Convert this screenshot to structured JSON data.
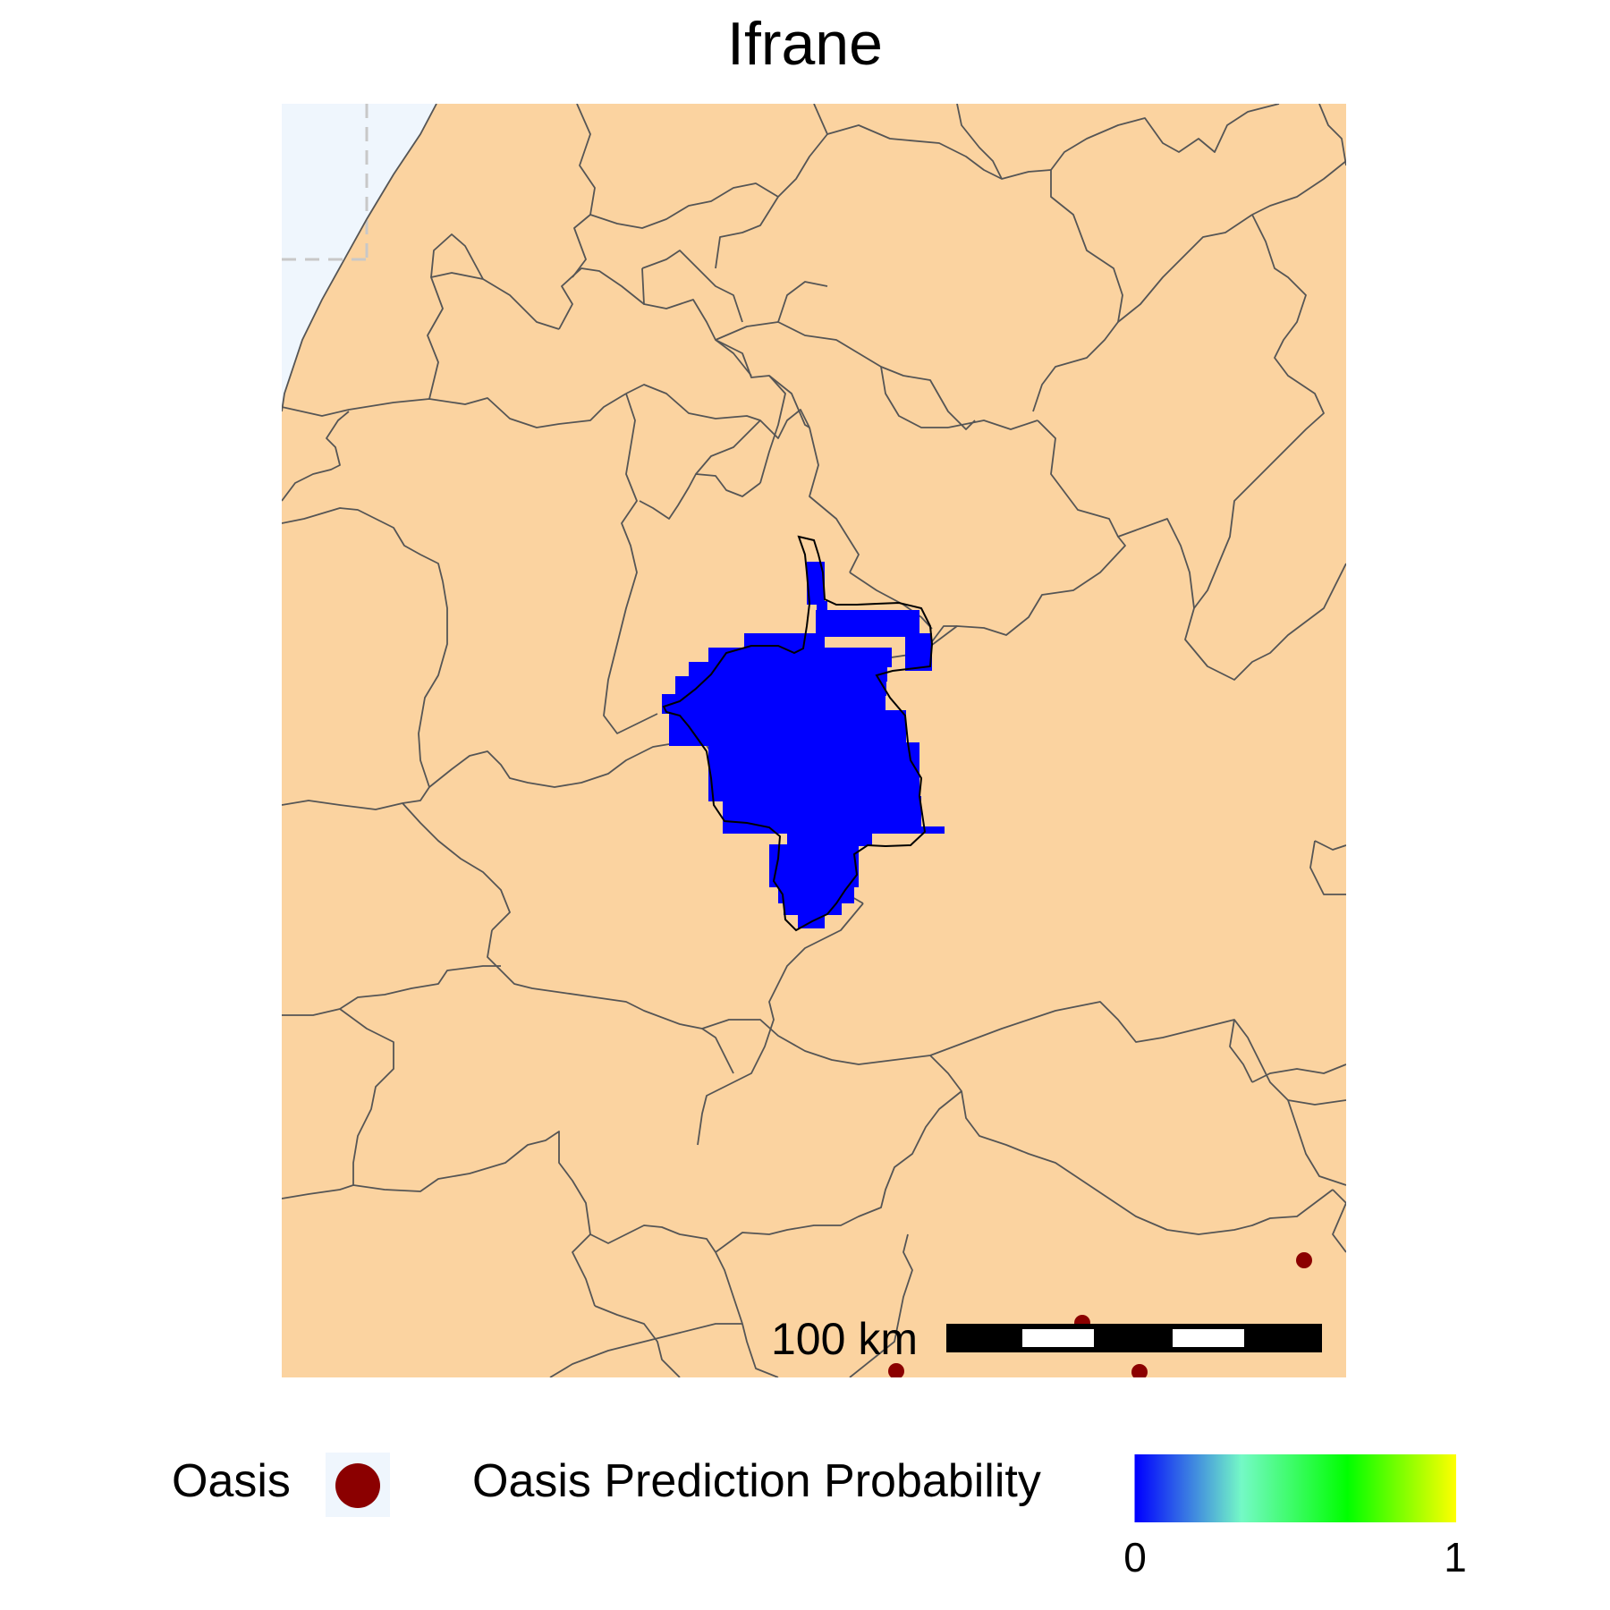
{
  "title": "Ifrane",
  "colors": {
    "land": "#fbd3a0",
    "sea": "#eff6fd",
    "borders": "#555555",
    "prediction": "#0000ff",
    "oasis_point": "#8b0000",
    "gradient": [
      "#0000ff",
      "#74f9c6",
      "#00ff00",
      "#ffff00"
    ]
  },
  "scale_bar": {
    "label": "100 km"
  },
  "legend": {
    "oasis_label": "Oasis",
    "probability_label": "Oasis Prediction Probability",
    "min": "0",
    "max": "1"
  }
}
